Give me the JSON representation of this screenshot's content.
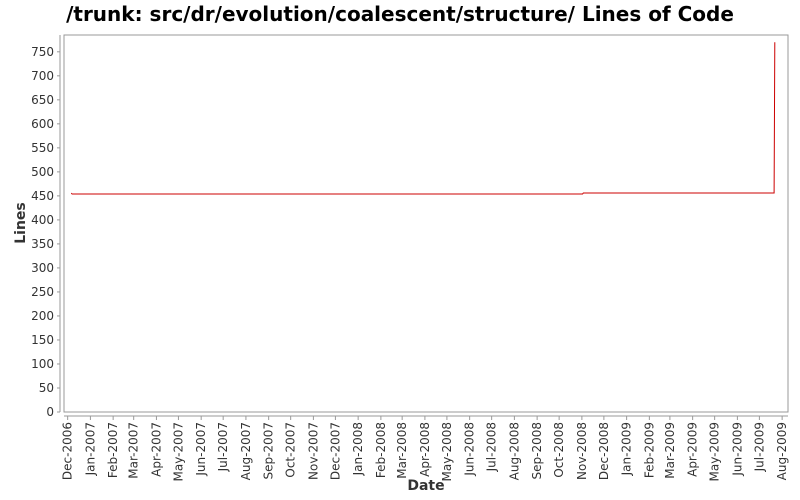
{
  "chart_data": {
    "type": "line",
    "title": "/trunk: src/dr/evolution/coalescent/structure/ Lines of Code",
    "xlabel": "Date",
    "ylabel": "Lines",
    "x_ticks": [
      "Dec-2006",
      "Jan-2007",
      "Feb-2007",
      "Mar-2007",
      "Apr-2007",
      "May-2007",
      "Jun-2007",
      "Jul-2007",
      "Aug-2007",
      "Sep-2007",
      "Oct-2007",
      "Nov-2007",
      "Dec-2007",
      "Jan-2008",
      "Feb-2008",
      "Mar-2008",
      "Apr-2008",
      "May-2008",
      "Jun-2008",
      "Jul-2008",
      "Aug-2008",
      "Sep-2008",
      "Oct-2008",
      "Nov-2008",
      "Dec-2008",
      "Jan-2009",
      "Feb-2009",
      "Mar-2009",
      "Apr-2009",
      "May-2009",
      "Jun-2009",
      "Jul-2009",
      "Aug-2009"
    ],
    "y_ticks": [
      0,
      50,
      100,
      150,
      200,
      250,
      300,
      350,
      400,
      450,
      500,
      550,
      600,
      650,
      700,
      750
    ],
    "xlim": [
      "2006-11-26",
      "2009-08-09"
    ],
    "ylim": [
      0,
      785
    ],
    "grid": false,
    "series": [
      {
        "color": "#cc0000",
        "points": [
          {
            "x": "2006-12-06",
            "y": 456
          },
          {
            "x": "2006-12-07",
            "y": 454
          },
          {
            "x": "2008-11-02",
            "y": 454
          },
          {
            "x": "2008-11-03",
            "y": 456
          },
          {
            "x": "2009-07-21",
            "y": 456
          },
          {
            "x": "2009-07-22",
            "y": 770
          }
        ]
      }
    ]
  }
}
